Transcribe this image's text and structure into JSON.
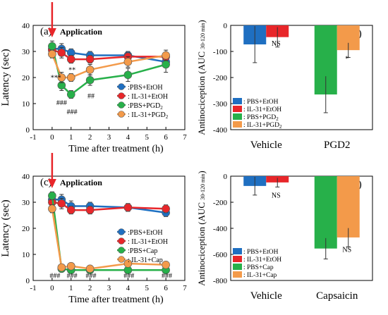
{
  "colors": {
    "PBS+EtOH": "#1f6fc1",
    "IL-31+EtOH": "#e8262a",
    "PBS+PGD2": "#27b04a",
    "IL-31+PGD2": "#f39a4a",
    "application_arrow": "#e8262a"
  },
  "chart_data": [
    {
      "panel": "(a)",
      "type": "line",
      "application_text": "Application",
      "xlabel": "Time after treatment (h)",
      "ylabel": "Latency (sec)",
      "xlim": [
        -1,
        7
      ],
      "ylim": [
        0,
        40
      ],
      "xticks": [
        "-1",
        "0",
        "1",
        "2",
        "3",
        "4",
        "5",
        "6",
        "7"
      ],
      "yticks": [
        "0",
        "10",
        "20",
        "30",
        "40"
      ],
      "x": [
        0,
        0.5,
        1,
        2,
        4,
        6
      ],
      "legend_position": "lower-right",
      "series": [
        {
          "name": ":PBS+EtOH",
          "key": "PBS+EtOH",
          "values": [
            31,
            31,
            29.5,
            28.5,
            28.5,
            26
          ],
          "err": [
            2,
            2,
            1.5,
            1.5,
            1.5,
            1.5
          ]
        },
        {
          "name": ": IL-31+EtOH",
          "key": "IL-31+EtOH",
          "values": [
            30.5,
            29.5,
            27,
            27,
            28,
            28
          ],
          "err": [
            1.5,
            2,
            1.5,
            1.5,
            1.5,
            1.5
          ]
        },
        {
          "name": ":PBS+PGD",
          "sub": "2",
          "key": "PBS+PGD2",
          "values": [
            32,
            17,
            13.5,
            19,
            21,
            25
          ],
          "err": [
            2,
            2,
            1.5,
            2,
            2.5,
            3
          ]
        },
        {
          "name": ": IL-31+PGD",
          "sub": "2",
          "key": "IL-31+PGD2",
          "values": [
            29,
            20,
            20,
            23,
            26,
            28.5
          ],
          "err": [
            1.5,
            2,
            1.5,
            2,
            2,
            2
          ]
        }
      ],
      "annotations": [
        {
          "text": "***",
          "x": 0.2,
          "y": 19
        },
        {
          "text": "**",
          "x": 1.05,
          "y": 22
        },
        {
          "text": "###",
          "x": 0.5,
          "y": 9.5
        },
        {
          "text": "###",
          "x": 1.05,
          "y": 6
        },
        {
          "text": "##",
          "x": 2.05,
          "y": 12
        }
      ]
    },
    {
      "panel": "(b)",
      "type": "bar",
      "ylabel": "Antinociception (AUC",
      "ylabel_sub": "30-120 min",
      "ylabel_close": ")",
      "categories": [
        "Vehicle",
        "PGD2"
      ],
      "ylim": [
        -400,
        0
      ],
      "yticks": [
        "-400",
        "-300",
        "-200",
        "-100",
        "0"
      ],
      "legend_position": "lower-left",
      "series": [
        {
          "name": ": PBS+EtOH",
          "key": "PBS+EtOH",
          "values": [
            -73,
            null
          ],
          "err": [
            70,
            null
          ]
        },
        {
          "name": ": IL-31+EtOH",
          "key": "IL-31+EtOH",
          "values": [
            -45,
            null
          ],
          "err": [
            38,
            null
          ]
        },
        {
          "name": ": PBS+PGD",
          "sub": "2",
          "key": "PBS+PGD2",
          "values": [
            null,
            -265
          ],
          "err": [
            null,
            70
          ]
        },
        {
          "name": ": IL-31+PGD",
          "sub": "2",
          "key": "IL-31+PGD2",
          "values": [
            null,
            -95
          ],
          "err": [
            null,
            28
          ]
        }
      ],
      "annotations": [
        {
          "text": "NS",
          "category": 0,
          "y": -78
        },
        {
          "text": "*",
          "category": 1,
          "y": -137
        }
      ]
    },
    {
      "panel": "(c)",
      "type": "line",
      "application_text": "Application",
      "xlabel": "Time after treatment (h)",
      "ylabel": "Latency (sec)",
      "xlim": [
        -1,
        7
      ],
      "ylim": [
        0,
        40
      ],
      "xticks": [
        "-1",
        "0",
        "1",
        "2",
        "3",
        "4",
        "5",
        "6",
        "7"
      ],
      "yticks": [
        "0",
        "10",
        "20",
        "30",
        "40"
      ],
      "x": [
        0,
        0.5,
        1,
        2,
        4,
        6
      ],
      "legend_position": "right",
      "series": [
        {
          "name": ":PBS+EtOH",
          "key": "PBS+EtOH",
          "values": [
            31,
            31,
            28.5,
            28.5,
            28,
            26
          ],
          "err": [
            2,
            2,
            2,
            1.5,
            1.5,
            1.5
          ]
        },
        {
          "name": ": IL-31+EtOH",
          "key": "IL-31+EtOH",
          "values": [
            30,
            29.5,
            27,
            27,
            28,
            27.5
          ],
          "err": [
            1.5,
            2,
            1.5,
            1.5,
            1.5,
            1.5
          ]
        },
        {
          "name": ":PBS+Cap",
          "key": "PBS+Cap",
          "colorKey": "PBS+PGD2",
          "values": [
            32.5,
            4.5,
            4,
            4,
            4,
            4
          ],
          "err": [
            1.5,
            0.8,
            0.8,
            0.8,
            0.8,
            0.8
          ]
        },
        {
          "name": ": IL-31+Cap",
          "key": "IL-31+Cap",
          "colorKey": "IL-31+PGD2",
          "values": [
            27.5,
            5,
            5.5,
            4.5,
            6.5,
            6
          ],
          "err": [
            1.5,
            0.8,
            0.8,
            0.8,
            0.8,
            0.8
          ]
        }
      ],
      "annotations": [
        {
          "text": "###",
          "x": 0.15,
          "y": 1
        },
        {
          "text": "###",
          "x": 1.05,
          "y": 1
        },
        {
          "text": "###",
          "x": 2.05,
          "y": 1
        },
        {
          "text": "###",
          "x": 4.05,
          "y": 1
        },
        {
          "text": "###",
          "x": 6.05,
          "y": 1
        }
      ]
    },
    {
      "panel": "(d)",
      "type": "bar",
      "ylabel": "Antinociception (AUC",
      "ylabel_sub": "30-120 min",
      "ylabel_close": ")",
      "categories": [
        "Vehicle",
        "Capsaicin"
      ],
      "ylim": [
        -800,
        0
      ],
      "yticks": [
        "-800",
        "-600",
        "-400",
        "-200",
        "0"
      ],
      "legend_position": "lower-left",
      "series": [
        {
          "name": ": PBS+EtOH",
          "key": "PBS+EtOH",
          "values": [
            -75,
            null
          ],
          "err": [
            70,
            null
          ]
        },
        {
          "name": ": IL-31+EtOH",
          "key": "IL-31+EtOH",
          "values": [
            -48,
            null
          ],
          "err": [
            35,
            null
          ]
        },
        {
          "name": ": PBS+Cap",
          "key": "PBS+Cap",
          "colorKey": "PBS+PGD2",
          "values": [
            null,
            -555
          ],
          "err": [
            null,
            80
          ]
        },
        {
          "name": ": IL-31+Cap",
          "key": "IL-31+Cap",
          "colorKey": "IL-31+PGD2",
          "values": [
            null,
            -470
          ],
          "err": [
            null,
            72
          ]
        }
      ],
      "annotations": [
        {
          "text": "NS",
          "category": 0,
          "y": -165
        },
        {
          "text": "NS",
          "category": 1,
          "y": -580
        }
      ]
    }
  ]
}
